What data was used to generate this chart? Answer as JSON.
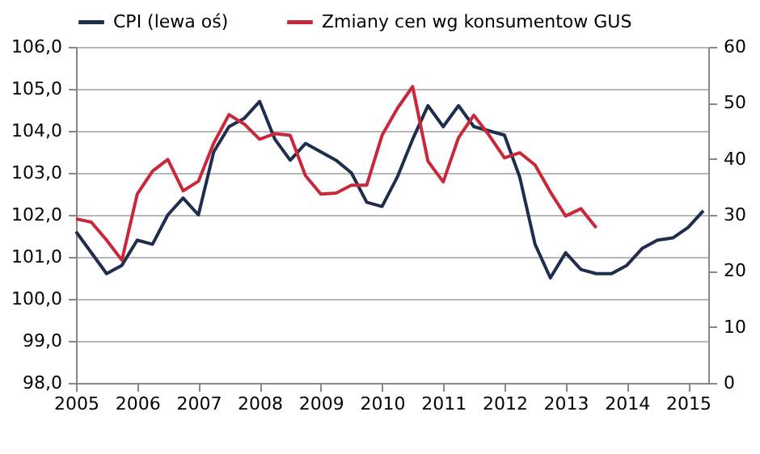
{
  "chart_data": {
    "type": "line",
    "legend": "top",
    "grid": "y",
    "xlim": [
      2005,
      2015.33
    ],
    "xticks": [
      2005,
      2006,
      2007,
      2008,
      2009,
      2010,
      2011,
      2012,
      2013,
      2014,
      2015
    ],
    "ylim": [
      98,
      106
    ],
    "yticks": [
      {
        "value": 98,
        "label": "98,0"
      },
      {
        "value": 99,
        "label": "99,0"
      },
      {
        "value": 100,
        "label": "100,0"
      },
      {
        "value": 101,
        "label": "101,0"
      },
      {
        "value": 102,
        "label": "102,0"
      },
      {
        "value": 103,
        "label": "103,0"
      },
      {
        "value": 104,
        "label": "104,0"
      },
      {
        "value": 105,
        "label": "105,0"
      },
      {
        "value": 106,
        "label": "106,0"
      }
    ],
    "y2lim": [
      0,
      60
    ],
    "y2ticks": [
      0,
      10,
      20,
      30,
      40,
      50,
      60
    ],
    "series": [
      {
        "name": "CPI (lewa oś)",
        "color": "#1f2d4e",
        "x": [
          2005,
          2005.25,
          2005.5,
          2005.75,
          2006,
          2006.25,
          2006.5,
          2006.75,
          2007,
          2007.25,
          2007.5,
          2007.75,
          2008,
          2008.25,
          2008.5,
          2008.75,
          2009,
          2009.25,
          2009.5,
          2009.75,
          2010,
          2010.25,
          2010.5,
          2010.75,
          2011,
          2011.25,
          2011.5,
          2011.75,
          2012,
          2012.25,
          2012.5,
          2012.75,
          2013,
          2013.25,
          2013.5,
          2013.75,
          2014,
          2014.25,
          2014.5,
          2014.75,
          2015,
          2015.25
        ],
        "values": [
          101.6,
          101.1,
          100.6,
          100.8,
          101.4,
          101.3,
          102.0,
          102.4,
          102.0,
          103.5,
          104.1,
          104.3,
          104.7,
          103.8,
          103.3,
          103.7,
          103.5,
          103.3,
          103.0,
          102.3,
          102.2,
          102.9,
          103.8,
          104.6,
          104.1,
          104.6,
          104.1,
          104.0,
          103.9,
          102.9,
          101.3,
          100.5,
          101.1,
          100.7,
          100.6,
          100.6,
          100.8,
          101.2,
          101.4,
          101.45,
          101.7,
          102.1
        ]
      },
      {
        "name": "Zmiany cen wg konsumentow GUS",
        "color": "#c8283a",
        "axis": "y2",
        "x": [
          2005,
          2005.25,
          2005.5,
          2005.75,
          2006,
          2006.25,
          2006.5,
          2006.75,
          2007,
          2007.25,
          2007.5,
          2007.75,
          2008,
          2008.25,
          2008.5,
          2008.75,
          2009,
          2009.25,
          2009.5,
          2009.75,
          2010,
          2010.25,
          2010.5,
          2010.75,
          2011,
          2011.25,
          2011.5,
          2011.75,
          2012,
          2012.25,
          2012.5,
          2012.75,
          2013,
          2013.25,
          2013.5
        ],
        "values": [
          29.3,
          28.7,
          25.5,
          21.9,
          33.7,
          37.8,
          39.9,
          34.3,
          36.0,
          42.8,
          47.9,
          46.2,
          43.5,
          44.5,
          44.2,
          37.0,
          33.7,
          33.9,
          35.3,
          35.3,
          44.2,
          49.0,
          52.9,
          39.6,
          35.9,
          43.8,
          47.8,
          44.2,
          40.2,
          41.1,
          38.9,
          34.1,
          29.8,
          31.1,
          27.7
        ]
      }
    ]
  }
}
